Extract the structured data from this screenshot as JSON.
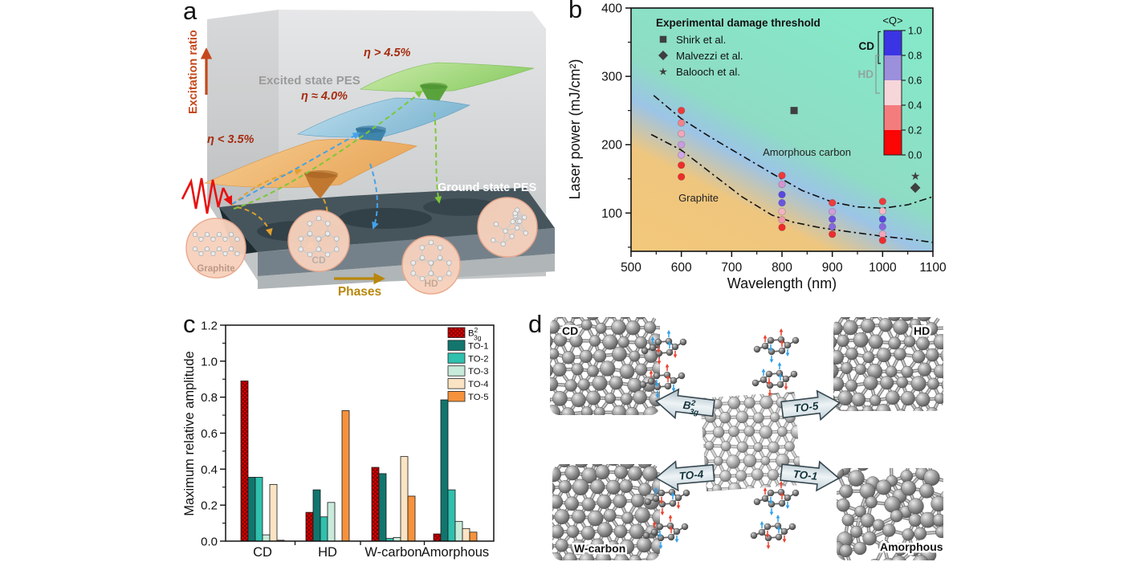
{
  "figure": {
    "panel_labels": {
      "a": "a",
      "b": "b",
      "c": "c",
      "d": "d"
    }
  },
  "panel_a": {
    "y_axis_label": "Excitation ratio",
    "excited_pes_label": "Excited state PES",
    "ground_pes_label": "Ground state PES",
    "phases_label": "Phases",
    "eta_low": "η < 3.5%",
    "eta_mid": "η ≈ 4.0%",
    "eta_high": "η > 4.5%",
    "circle_labels": {
      "graphite": "Graphite",
      "cd": "CD",
      "hd": "HD"
    }
  },
  "chart_data": [
    {
      "id": "b",
      "type": "scatter",
      "xlabel": "Wavelength (nm)",
      "ylabel": "Laser power (mJ/cm²)",
      "xlim": [
        500,
        1100
      ],
      "ylim": [
        44,
        400
      ],
      "xticks": [
        500,
        600,
        700,
        800,
        900,
        1000,
        1100
      ],
      "yticks": [
        100,
        200,
        300,
        400
      ],
      "legend_title": "Experimental damage threshold",
      "ref_legend": [
        {
          "marker": "square",
          "label": "Shirk et al."
        },
        {
          "marker": "diamond",
          "label": "Malvezzi et al."
        },
        {
          "marker": "star",
          "label": "Balooch et al."
        }
      ],
      "region_labels": [
        {
          "text": "Graphite"
        },
        {
          "text": "Amorphous carbon"
        }
      ],
      "marker_color": "#3f3f3f",
      "points": [
        {
          "x": 600,
          "y": 250,
          "color": "#ee3a3a"
        },
        {
          "x": 600,
          "y": 232,
          "color": "#f28288"
        },
        {
          "x": 600,
          "y": 216,
          "color": "#f2a6ba"
        },
        {
          "x": 600,
          "y": 200,
          "color": "#c99ce2"
        },
        {
          "x": 600,
          "y": 185,
          "color": "#cfa6e6"
        },
        {
          "x": 600,
          "y": 170,
          "color": "#ee2c2c"
        },
        {
          "x": 600,
          "y": 153,
          "color": "#ee2c2c"
        },
        {
          "x": 800,
          "y": 155,
          "color": "#ee3a3a"
        },
        {
          "x": 800,
          "y": 142,
          "color": "#d694cf"
        },
        {
          "x": 800,
          "y": 127,
          "color": "#5a47e0"
        },
        {
          "x": 800,
          "y": 115,
          "color": "#6a55e2"
        },
        {
          "x": 800,
          "y": 102,
          "color": "#f4b2c2"
        },
        {
          "x": 800,
          "y": 90,
          "color": "#f096ab"
        },
        {
          "x": 800,
          "y": 79,
          "color": "#ee2c2c"
        },
        {
          "x": 900,
          "y": 115,
          "color": "#ee3a3a"
        },
        {
          "x": 900,
          "y": 102,
          "color": "#cf9cda"
        },
        {
          "x": 900,
          "y": 91,
          "color": "#6a50e0"
        },
        {
          "x": 900,
          "y": 80,
          "color": "#8768dd"
        },
        {
          "x": 900,
          "y": 69,
          "color": "#ee2c2c"
        },
        {
          "x": 1000,
          "y": 117,
          "color": "#ee3a3a"
        },
        {
          "x": 1000,
          "y": 103,
          "color": "#f5b6c5"
        },
        {
          "x": 1000,
          "y": 91,
          "color": "#5a47e0"
        },
        {
          "x": 1000,
          "y": 80,
          "color": "#8768dd"
        },
        {
          "x": 1000,
          "y": 69,
          "color": "#f2a6ba"
        },
        {
          "x": 1000,
          "y": 60,
          "color": "#ee2c2c"
        }
      ],
      "ref_points": [
        {
          "marker": "square",
          "x": 824,
          "y": 250
        },
        {
          "marker": "star",
          "x": 1065,
          "y": 154
        },
        {
          "marker": "diamond",
          "x": 1065,
          "y": 137
        }
      ],
      "boundaries": {
        "upper": [
          [
            545,
            272
          ],
          [
            600,
            238
          ],
          [
            660,
            210
          ],
          [
            720,
            184
          ],
          [
            780,
            158
          ],
          [
            840,
            133
          ],
          [
            900,
            116
          ],
          [
            950,
            109
          ],
          [
            1000,
            107
          ],
          [
            1050,
            112
          ],
          [
            1100,
            124
          ]
        ],
        "lower": [
          [
            540,
            215
          ],
          [
            600,
            192
          ],
          [
            660,
            158
          ],
          [
            720,
            124
          ],
          [
            780,
            97
          ],
          [
            820,
            87
          ],
          [
            880,
            78
          ],
          [
            940,
            72
          ],
          [
            1000,
            66
          ],
          [
            1050,
            62
          ],
          [
            1100,
            57
          ]
        ]
      },
      "colorbar": {
        "title": "<Q>",
        "ticks": [
          "1.0",
          "0.8",
          "0.6",
          "0.4",
          "0.2",
          "0.0"
        ],
        "segments": [
          "#3b34e4",
          "#9c8fdc",
          "#f7d6da",
          "#f57c7c",
          "#fb0505"
        ],
        "cd_label": "CD",
        "hd_label": "HD"
      }
    },
    {
      "id": "c",
      "type": "bar",
      "ylabel": "Maximum relative amplitude",
      "ylim": [
        0,
        1.2
      ],
      "yticks": [
        "0.0",
        "0.2",
        "0.4",
        "0.6",
        "0.8",
        "1.0",
        "1.2"
      ],
      "categories": [
        "CD",
        "HD",
        "W-carbon",
        "Amorphous"
      ],
      "series": [
        {
          "name": {
            "base": "B",
            "sup": "2",
            "sub": "3g"
          },
          "color": "#dd0404",
          "hatch": true,
          "values": [
            0.89,
            0.16,
            0.41,
            0.04
          ]
        },
        {
          "name": "TO-1",
          "color": "#12766e",
          "values": [
            0.355,
            0.285,
            0.375,
            0.785
          ]
        },
        {
          "name": "TO-2",
          "color": "#2fc0ae",
          "values": [
            0.355,
            0.135,
            0.015,
            0.285
          ]
        },
        {
          "name": "TO-3",
          "color": "#c9ebdb",
          "values": [
            0.035,
            0.215,
            0.02,
            0.11
          ]
        },
        {
          "name": "TO-4",
          "color": "#fbe4c3",
          "values": [
            0.315,
            0,
            0.47,
            0.07
          ]
        },
        {
          "name": "TO-5",
          "color": "#f6923c",
          "values": [
            0.005,
            0.725,
            0.25,
            0.05
          ]
        }
      ]
    }
  ],
  "panel_d": {
    "corner_labels": {
      "tl": "CD",
      "tr": "HD",
      "bl": "W-carbon",
      "br": "Amorphous"
    },
    "arrow_labels": {
      "tl": {
        "base": "B",
        "sup": "2",
        "sub": "3g"
      },
      "tr": "TO-5",
      "bl": "TO-4",
      "br": "TO-1"
    }
  }
}
